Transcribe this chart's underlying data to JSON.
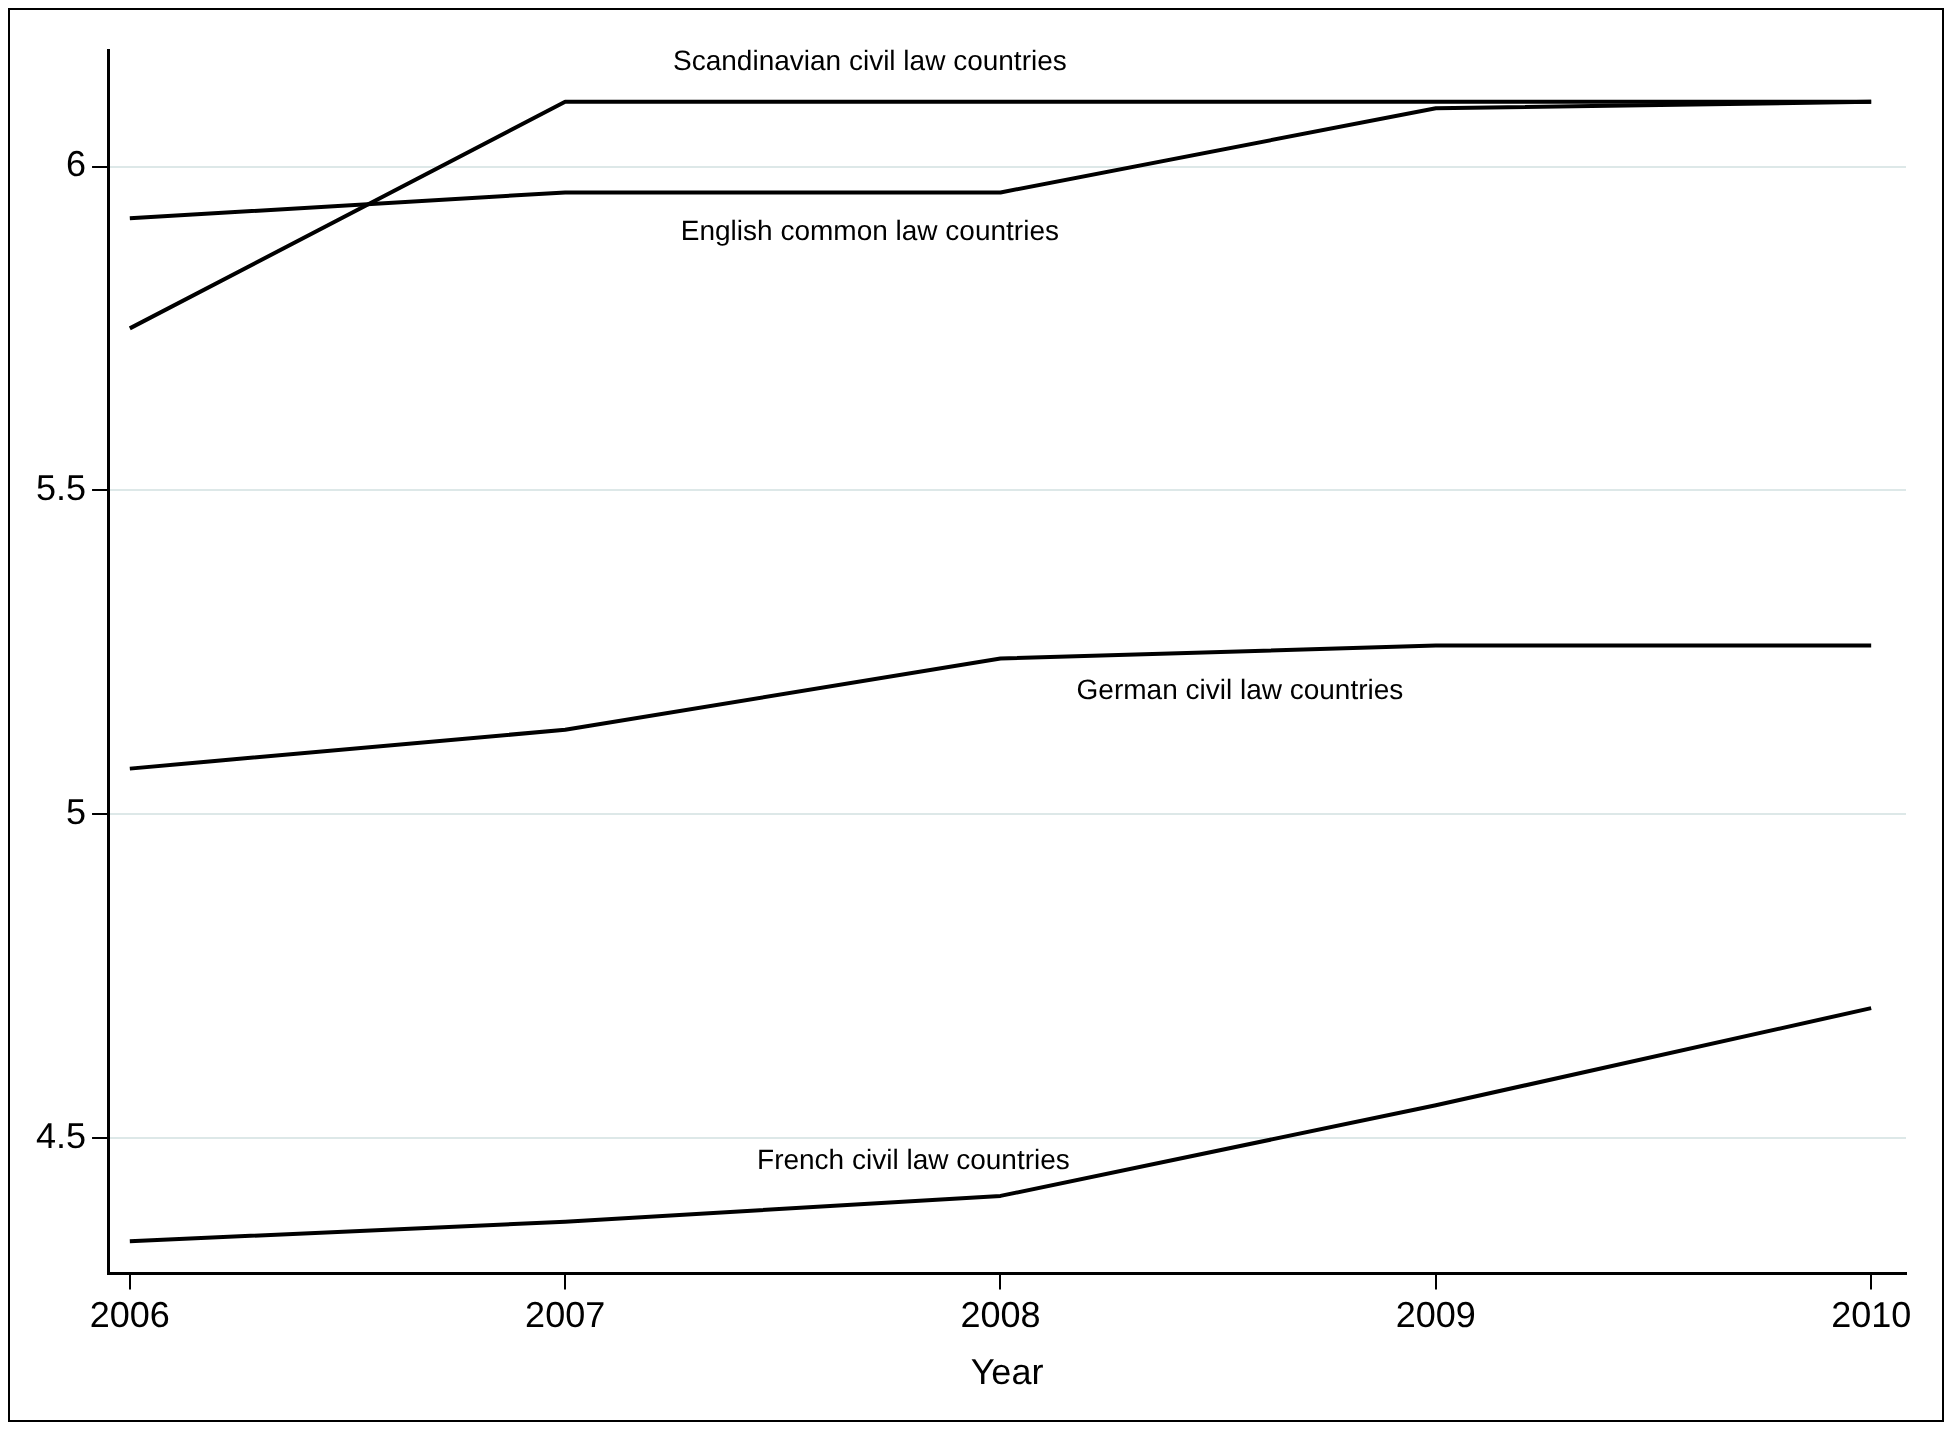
{
  "chart_data": {
    "type": "line",
    "xlabel": "Year",
    "x": [
      2006,
      2007,
      2008,
      2009,
      2010
    ],
    "series": [
      {
        "name": "Scandinavian civil law countries",
        "color": "#000000",
        "values": [
          5.75,
          6.1,
          6.1,
          6.1,
          6.1
        ]
      },
      {
        "name": "English common law countries",
        "color": "#000000",
        "values": [
          5.92,
          5.96,
          5.96,
          6.09,
          6.1
        ]
      },
      {
        "name": "German civil law countries",
        "color": "#000000",
        "values": [
          5.07,
          5.13,
          5.24,
          5.26,
          5.26
        ]
      },
      {
        "name": "French civil law countries",
        "color": "#000000",
        "values": [
          4.34,
          4.37,
          4.41,
          4.55,
          4.7
        ]
      }
    ],
    "xlim": [
      2005.95,
      2010.08
    ],
    "xticks": [
      2006,
      2007,
      2008,
      2009,
      2010
    ],
    "ylim": [
      4.29,
      6.18
    ],
    "yticks": [
      4.5,
      5,
      5.5,
      6
    ],
    "grid": "y",
    "legend": false,
    "marker": "none",
    "line_style": "solid"
  }
}
